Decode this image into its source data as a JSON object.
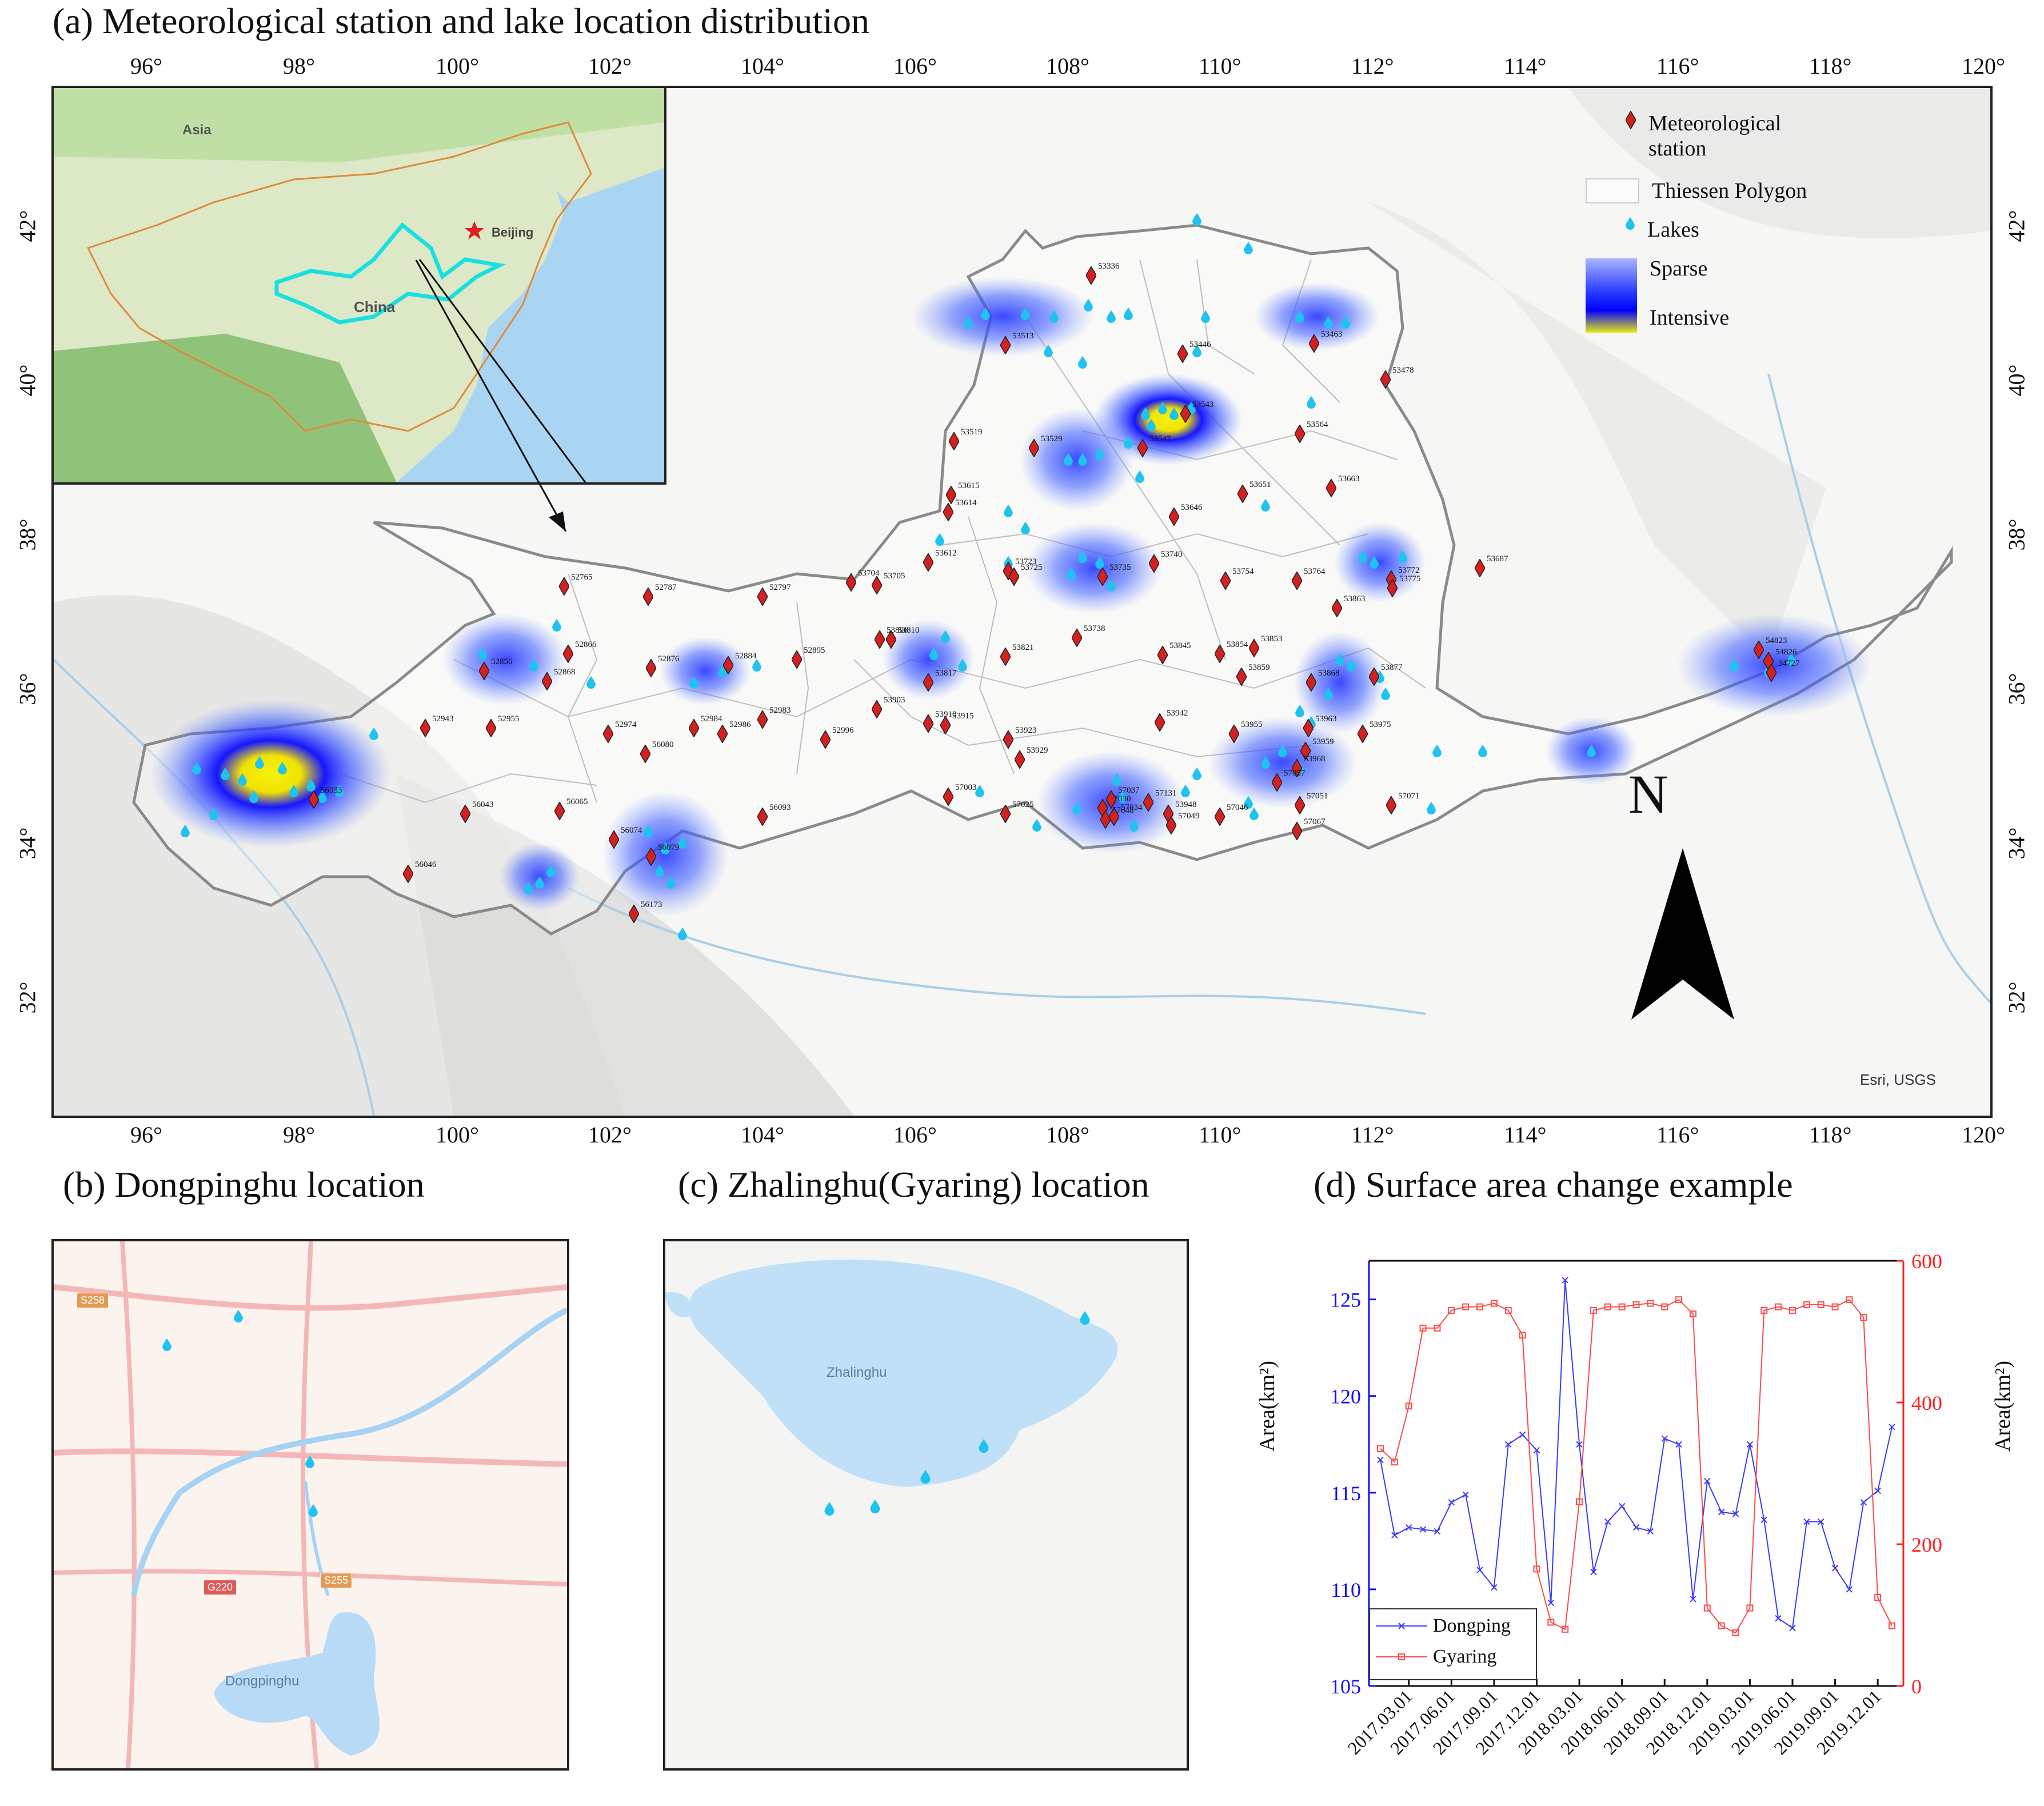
{
  "panel_a": {
    "title": "(a) Meteorological station and lake location distribution",
    "lon_ticks": [
      "96°",
      "98°",
      "100°",
      "102°",
      "104°",
      "106°",
      "108°",
      "110°",
      "112°",
      "114°",
      "116°",
      "118°",
      "120°"
    ],
    "lat_ticks": [
      "42°",
      "40°",
      "38°",
      "36°",
      "34°",
      "32°"
    ],
    "attribution": "Esri, USGS",
    "north_label": "N",
    "inset": {
      "asia_label": "Asia",
      "beijing_label": "Beijing",
      "china_label": "China"
    },
    "legend": {
      "station": "Meteorological station",
      "thiessen": "Thiessen Polygon",
      "lakes": "Lakes",
      "sparse": "Sparse",
      "intensive": "Intensive"
    },
    "colors": {
      "station": "#d42020",
      "lake": "#1ec3f0",
      "basin_outline": "#8a8a8a",
      "heat_sparse": "#2f4cff",
      "heat_intensive": "#f2f20a"
    },
    "stations": [
      {
        "id": "53336"
      },
      {
        "id": "53513"
      },
      {
        "id": "53446"
      },
      {
        "id": "53463"
      },
      {
        "id": "53478"
      },
      {
        "id": "53543"
      },
      {
        "id": "53547"
      },
      {
        "id": "53529"
      },
      {
        "id": "53519"
      },
      {
        "id": "53564"
      },
      {
        "id": "53615"
      },
      {
        "id": "53614"
      },
      {
        "id": "53651"
      },
      {
        "id": "53663"
      },
      {
        "id": "53646"
      },
      {
        "id": "53612"
      },
      {
        "id": "53723"
      },
      {
        "id": "53725"
      },
      {
        "id": "53735"
      },
      {
        "id": "53740"
      },
      {
        "id": "53754"
      },
      {
        "id": "53764"
      },
      {
        "id": "53772"
      },
      {
        "id": "53775"
      },
      {
        "id": "53687"
      },
      {
        "id": "53863"
      },
      {
        "id": "53738"
      },
      {
        "id": "53704"
      },
      {
        "id": "53705"
      },
      {
        "id": "52797"
      },
      {
        "id": "52787"
      },
      {
        "id": "52765"
      },
      {
        "id": "53810"
      },
      {
        "id": "53806"
      },
      {
        "id": "53821"
      },
      {
        "id": "53845"
      },
      {
        "id": "53854"
      },
      {
        "id": "53853"
      },
      {
        "id": "53859"
      },
      {
        "id": "53868"
      },
      {
        "id": "53877"
      },
      {
        "id": "52895"
      },
      {
        "id": "52884"
      },
      {
        "id": "52876"
      },
      {
        "id": "52866"
      },
      {
        "id": "52856"
      },
      {
        "id": "52868"
      },
      {
        "id": "53817"
      },
      {
        "id": "53903"
      },
      {
        "id": "53910"
      },
      {
        "id": "53915"
      },
      {
        "id": "53923"
      },
      {
        "id": "53929"
      },
      {
        "id": "53942"
      },
      {
        "id": "53955"
      },
      {
        "id": "53963"
      },
      {
        "id": "53959"
      },
      {
        "id": "53968"
      },
      {
        "id": "53975"
      },
      {
        "id": "52983"
      },
      {
        "id": "52984"
      },
      {
        "id": "52986"
      },
      {
        "id": "52996"
      },
      {
        "id": "52974"
      },
      {
        "id": "52955"
      },
      {
        "id": "52943"
      },
      {
        "id": "56080"
      },
      {
        "id": "57003"
      },
      {
        "id": "57025"
      },
      {
        "id": "57030"
      },
      {
        "id": "57037"
      },
      {
        "id": "57048"
      },
      {
        "id": "57034"
      },
      {
        "id": "57131"
      },
      {
        "id": "53948"
      },
      {
        "id": "57049"
      },
      {
        "id": "57046"
      },
      {
        "id": "57057"
      },
      {
        "id": "57051"
      },
      {
        "id": "57067"
      },
      {
        "id": "57071"
      },
      {
        "id": "56033"
      },
      {
        "id": "56043"
      },
      {
        "id": "56065"
      },
      {
        "id": "56093"
      },
      {
        "id": "56074"
      },
      {
        "id": "56079"
      },
      {
        "id": "56046"
      },
      {
        "id": "56173"
      },
      {
        "id": "54823"
      },
      {
        "id": "54826"
      },
      {
        "id": "54727"
      }
    ]
  },
  "panel_b": {
    "title": "(b) Dongpinghu location",
    "lake_label": "Dongpinghu",
    "roads": [
      "S258",
      "G220",
      "S255"
    ]
  },
  "panel_c": {
    "title": "(c) Zhalinghu(Gyaring) location",
    "lake_label": "Zhalinghu"
  },
  "panel_d": {
    "title": "(d) Surface area change example",
    "ylabel_left": "Area(km²)",
    "ylabel_right": "Area(km²)",
    "yticks_left": [
      "105",
      "110",
      "115",
      "120",
      "125"
    ],
    "yticks_right": [
      "0",
      "200",
      "400",
      "600"
    ],
    "xticks": [
      "2017.03.01",
      "2017.06.01",
      "2017.09.01",
      "2017.12.01",
      "2018.03.01",
      "2018.06.01",
      "2018.09.01",
      "2018.12.01",
      "2019.03.01",
      "2019.06.01",
      "2019.09.01",
      "2019.12.01"
    ]
  },
  "chart_data": {
    "type": "line",
    "title": "(d) Surface area change example",
    "xlabel": "",
    "ylabel": "Area(km²)",
    "ylim": [
      105,
      127
    ],
    "y2lim": [
      0,
      600
    ],
    "x_tick_labels": [
      "2017.03.01",
      "2017.06.01",
      "2017.09.01",
      "2017.12.01",
      "2018.03.01",
      "2018.06.01",
      "2018.09.01",
      "2018.12.01",
      "2019.03.01",
      "2019.06.01",
      "2019.09.01",
      "2019.12.01"
    ],
    "series": [
      {
        "name": "Dongping",
        "axis": "left",
        "color": "#3b3bff",
        "marker": "x",
        "values": [
          116.7,
          112.8,
          113.2,
          113.1,
          113.0,
          114.5,
          114.9,
          111.0,
          110.1,
          117.5,
          118.0,
          117.2,
          109.3,
          126.0,
          117.5,
          110.9,
          113.5,
          114.3,
          113.2,
          113.0,
          117.8,
          117.5,
          109.5,
          115.6,
          114.0,
          113.9,
          117.5,
          113.6,
          108.5,
          108.0,
          113.5,
          113.5,
          111.1,
          110.0,
          114.5,
          115.1,
          118.4
        ]
      },
      {
        "name": "Gyaring",
        "axis": "right",
        "color": "#ff4a4a",
        "marker": "square",
        "values": [
          335,
          316,
          395,
          505,
          505,
          530,
          535,
          535,
          540,
          530,
          495,
          165,
          90,
          80,
          260,
          530,
          535,
          535,
          538,
          540,
          535,
          545,
          525,
          110,
          85,
          75,
          110,
          530,
          535,
          530,
          538,
          538,
          535,
          545,
          520,
          125,
          85
        ]
      }
    ]
  }
}
